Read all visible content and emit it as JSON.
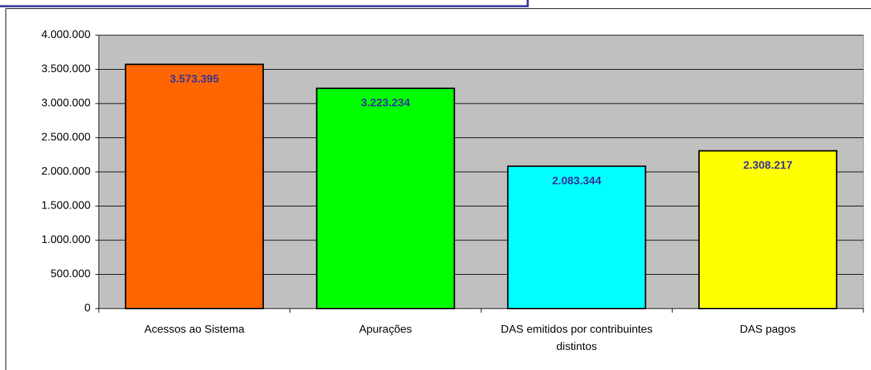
{
  "chart_data": {
    "type": "bar",
    "categories": [
      "Acessos ao Sistema",
      "Apurações",
      "DAS emitidos por contribuintes distintos",
      "DAS pagos"
    ],
    "values": [
      3573395,
      3223234,
      2083344,
      2308217
    ],
    "value_labels": [
      "3.573.395",
      "3.223.234",
      "2.083.344",
      "2.308.217"
    ],
    "colors": [
      "#ff6600",
      "#00ff00",
      "#00ffff",
      "#ffff00"
    ],
    "ylim": [
      0,
      4000000
    ],
    "yticks": [
      0,
      {
        "value": 500000,
        "label": "500.000"
      },
      {
        "value": 1000000,
        "label": "1.000.000"
      },
      {
        "value": 1500000,
        "label": "1.500.000"
      },
      {
        "value": 2000000,
        "label": "2.000.000"
      },
      {
        "value": 2500000,
        "label": "2.500.000"
      },
      {
        "value": 3000000,
        "label": "3.000.000"
      },
      {
        "value": 3500000,
        "label": "3.500.000"
      },
      {
        "value": 4000000,
        "label": "4.000.000"
      }
    ],
    "grid": true
  }
}
